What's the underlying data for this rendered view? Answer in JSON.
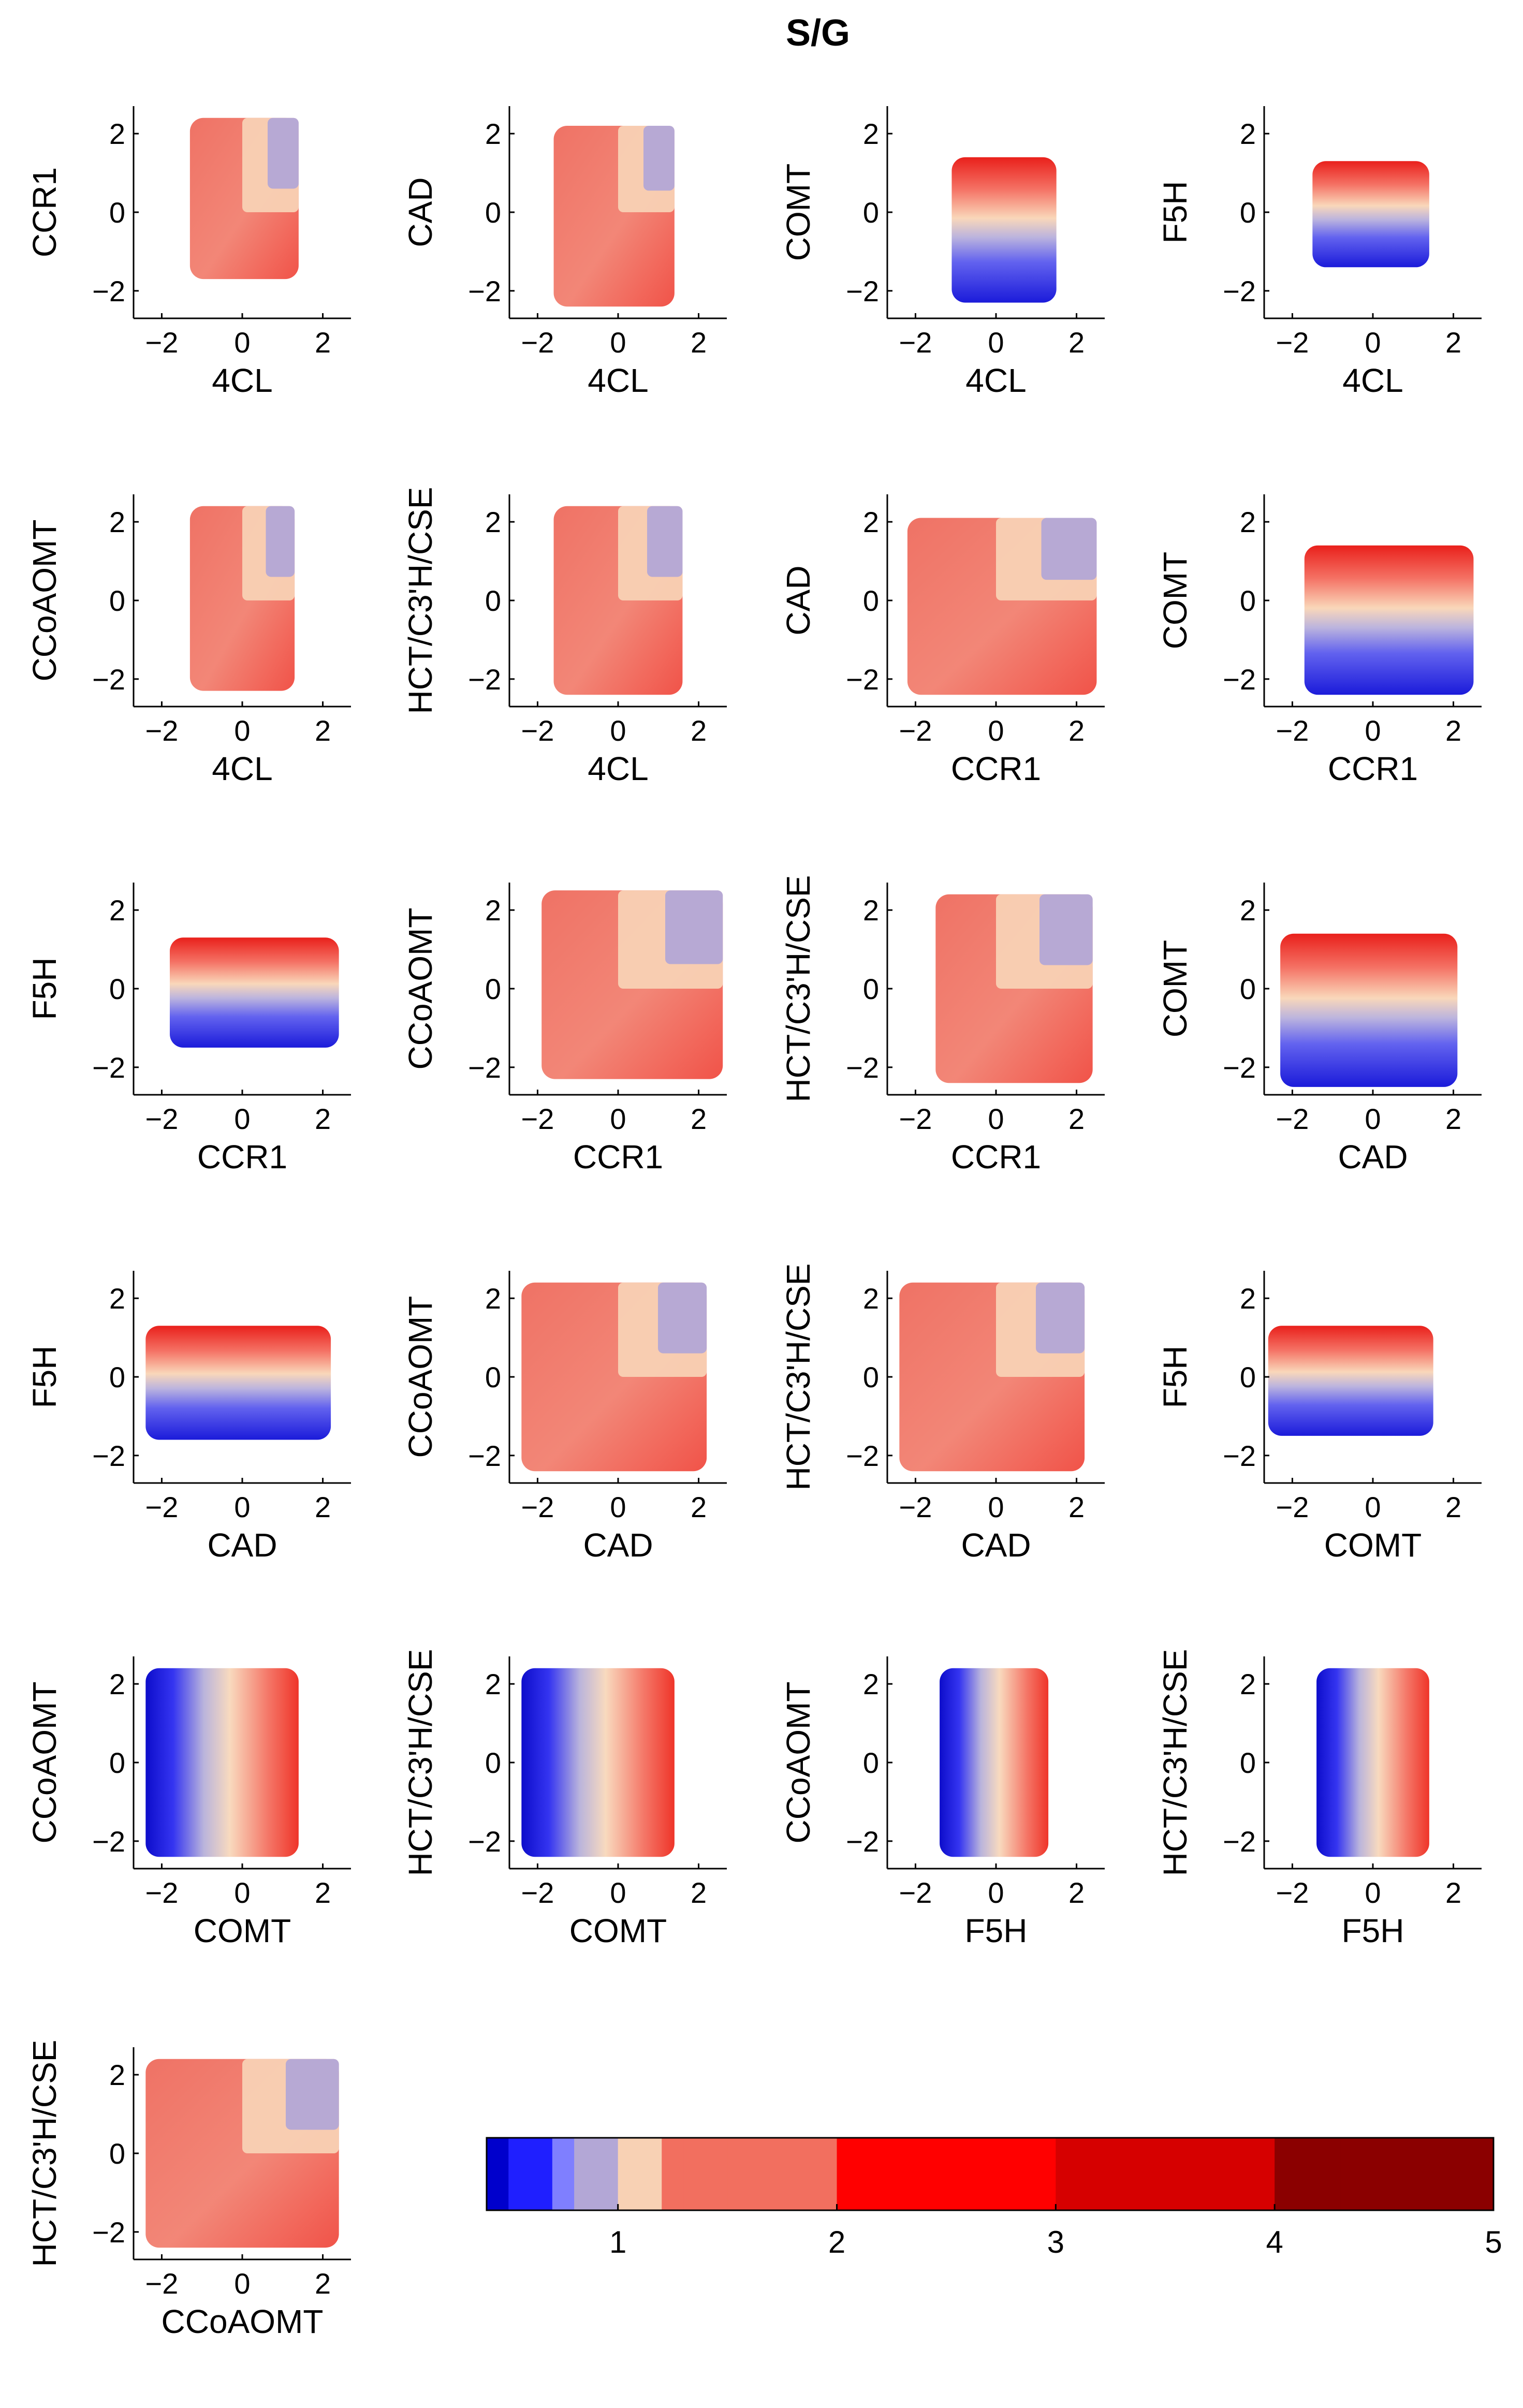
{
  "title": "S/G",
  "chart_data": {
    "type": "scatter",
    "title": "S/G",
    "description_kind": "pairwise response-surface scatter matrix",
    "colorbar": {
      "ticks": [
        "1",
        "2",
        "3",
        "4",
        "5"
      ],
      "range": [
        0.4,
        5
      ],
      "stops": [
        {
          "v": 0.4,
          "color": "#00008f"
        },
        {
          "v": 0.5,
          "color": "#0000cc"
        },
        {
          "v": 0.7,
          "color": "#1f1fff"
        },
        {
          "v": 0.85,
          "color": "#7f7fff"
        },
        {
          "v": 0.95,
          "color": "#b3a7d6"
        },
        {
          "v": 1.0,
          "color": "#fae1c1"
        },
        {
          "v": 1.2,
          "color": "#f8d1b4"
        },
        {
          "v": 2.0,
          "color": "#f26f5f"
        },
        {
          "v": 3.0,
          "color": "#ff0000"
        },
        {
          "v": 4.0,
          "color": "#d60000"
        },
        {
          "v": 5.0,
          "color": "#8b0000"
        }
      ]
    },
    "panels": [
      {
        "xlabel": "4CL",
        "ylabel": "CCR1",
        "xticks": [
          "−2",
          "0",
          "2"
        ],
        "yticks": [
          "−2",
          "0",
          "2"
        ],
        "xrange": [
          -1.3,
          1.4
        ],
        "yrange": [
          -1.7,
          2.4
        ],
        "pattern": "tiles"
      },
      {
        "xlabel": "4CL",
        "ylabel": "CAD",
        "xticks": [
          "−2",
          "0",
          "2"
        ],
        "yticks": [
          "−2",
          "0",
          "2"
        ],
        "xrange": [
          -1.6,
          1.4
        ],
        "yrange": [
          -2.4,
          2.2
        ],
        "pattern": "tiles"
      },
      {
        "xlabel": "4CL",
        "ylabel": "COMT",
        "xticks": [
          "−2",
          "0",
          "2"
        ],
        "yticks": [
          "−2",
          "0",
          "2"
        ],
        "xrange": [
          -1.1,
          1.5
        ],
        "yrange": [
          -2.3,
          1.4
        ],
        "pattern": "bands"
      },
      {
        "xlabel": "4CL",
        "ylabel": "F5H",
        "xticks": [
          "−2",
          "0",
          "2"
        ],
        "yticks": [
          "−2",
          "0",
          "2"
        ],
        "xrange": [
          -1.5,
          1.4
        ],
        "yrange": [
          -1.4,
          1.3
        ],
        "pattern": "bands"
      },
      {
        "xlabel": "4CL",
        "ylabel": "CCoAOMT",
        "xticks": [
          "−2",
          "0",
          "2"
        ],
        "yticks": [
          "−2",
          "0",
          "2"
        ],
        "xrange": [
          -1.3,
          1.3
        ],
        "yrange": [
          -2.3,
          2.4
        ],
        "pattern": "tiles"
      },
      {
        "xlabel": "4CL",
        "ylabel": "HCT/C3'H/CSE",
        "xticks": [
          "−2",
          "0",
          "2"
        ],
        "yticks": [
          "−2",
          "0",
          "2"
        ],
        "xrange": [
          -1.6,
          1.6
        ],
        "yrange": [
          -2.4,
          2.4
        ],
        "pattern": "tiles"
      },
      {
        "xlabel": "CCR1",
        "ylabel": "CAD",
        "xticks": [
          "−2",
          "0",
          "2"
        ],
        "yticks": [
          "−2",
          "0",
          "2"
        ],
        "xrange": [
          -2.2,
          2.5
        ],
        "yrange": [
          -2.4,
          2.1
        ],
        "pattern": "tiles"
      },
      {
        "xlabel": "CCR1",
        "ylabel": "COMT",
        "xticks": [
          "−2",
          "0",
          "2"
        ],
        "yticks": [
          "−2",
          "0",
          "2"
        ],
        "xrange": [
          -1.7,
          2.5
        ],
        "yrange": [
          -2.4,
          1.4
        ],
        "pattern": "bands"
      },
      {
        "xlabel": "CCR1",
        "ylabel": "F5H",
        "xticks": [
          "−2",
          "0",
          "2"
        ],
        "yticks": [
          "−2",
          "0",
          "2"
        ],
        "xrange": [
          -1.8,
          2.4
        ],
        "yrange": [
          -1.5,
          1.3
        ],
        "pattern": "bands"
      },
      {
        "xlabel": "CCR1",
        "ylabel": "CCoAOMT",
        "xticks": [
          "−2",
          "0",
          "2"
        ],
        "yticks": [
          "−2",
          "0",
          "2"
        ],
        "xrange": [
          -1.9,
          2.6
        ],
        "yrange": [
          -2.3,
          2.5
        ],
        "pattern": "tiles"
      },
      {
        "xlabel": "CCR1",
        "ylabel": "HCT/C3'H/CSE",
        "xticks": [
          "−2",
          "0",
          "2"
        ],
        "yticks": [
          "−2",
          "0",
          "2"
        ],
        "xrange": [
          -1.5,
          2.4
        ],
        "yrange": [
          -2.4,
          2.4
        ],
        "pattern": "tiles"
      },
      {
        "xlabel": "CAD",
        "ylabel": "COMT",
        "xticks": [
          "−2",
          "0",
          "2"
        ],
        "yticks": [
          "−2",
          "0",
          "2"
        ],
        "xrange": [
          -2.3,
          2.1
        ],
        "yrange": [
          -2.5,
          1.4
        ],
        "pattern": "bands"
      },
      {
        "xlabel": "CAD",
        "ylabel": "F5H",
        "xticks": [
          "−2",
          "0",
          "2"
        ],
        "yticks": [
          "−2",
          "0",
          "2"
        ],
        "xrange": [
          -2.4,
          2.2
        ],
        "yrange": [
          -1.6,
          1.3
        ],
        "pattern": "bands"
      },
      {
        "xlabel": "CAD",
        "ylabel": "CCoAOMT",
        "xticks": [
          "−2",
          "0",
          "2"
        ],
        "yticks": [
          "−2",
          "0",
          "2"
        ],
        "xrange": [
          -2.4,
          2.2
        ],
        "yrange": [
          -2.4,
          2.4
        ],
        "pattern": "tiles"
      },
      {
        "xlabel": "CAD",
        "ylabel": "HCT/C3'H/CSE",
        "xticks": [
          "−2",
          "0",
          "2"
        ],
        "yticks": [
          "−2",
          "0",
          "2"
        ],
        "xrange": [
          -2.4,
          2.2
        ],
        "yrange": [
          -2.4,
          2.4
        ],
        "pattern": "tiles"
      },
      {
        "xlabel": "COMT",
        "ylabel": "F5H",
        "xticks": [
          "−2",
          "0",
          "2"
        ],
        "yticks": [
          "−2",
          "0",
          "2"
        ],
        "xrange": [
          -2.6,
          1.5
        ],
        "yrange": [
          -1.5,
          1.3
        ],
        "pattern": "bands"
      },
      {
        "xlabel": "COMT",
        "ylabel": "CCoAOMT",
        "xticks": [
          "−2",
          "0",
          "2"
        ],
        "yticks": [
          "−2",
          "0",
          "2"
        ],
        "xrange": [
          -2.4,
          1.4
        ],
        "yrange": [
          -2.4,
          2.4
        ],
        "pattern": "columns"
      },
      {
        "xlabel": "COMT",
        "ylabel": "HCT/C3'H/CSE",
        "xticks": [
          "−2",
          "0",
          "2"
        ],
        "yticks": [
          "−2",
          "0",
          "2"
        ],
        "xrange": [
          -2.4,
          1.4
        ],
        "yrange": [
          -2.4,
          2.4
        ],
        "pattern": "columns"
      },
      {
        "xlabel": "F5H",
        "ylabel": "CCoAOMT",
        "xticks": [
          "−2",
          "0",
          "2"
        ],
        "yticks": [
          "−2",
          "0",
          "2"
        ],
        "xrange": [
          -1.4,
          1.3
        ],
        "yrange": [
          -2.4,
          2.4
        ],
        "pattern": "columns"
      },
      {
        "xlabel": "F5H",
        "ylabel": "HCT/C3'H/CSE",
        "xticks": [
          "−2",
          "0",
          "2"
        ],
        "yticks": [
          "−2",
          "0",
          "2"
        ],
        "xrange": [
          -1.4,
          1.4
        ],
        "yrange": [
          -2.4,
          2.4
        ],
        "pattern": "columns"
      },
      {
        "xlabel": "CCoAOMT",
        "ylabel": "HCT/C3'H/CSE",
        "xticks": [
          "−2",
          "0",
          "2"
        ],
        "yticks": [
          "−2",
          "0",
          "2"
        ],
        "xrange": [
          -2.4,
          2.4
        ],
        "yrange": [
          -2.4,
          2.4
        ],
        "pattern": "tiles"
      }
    ]
  }
}
